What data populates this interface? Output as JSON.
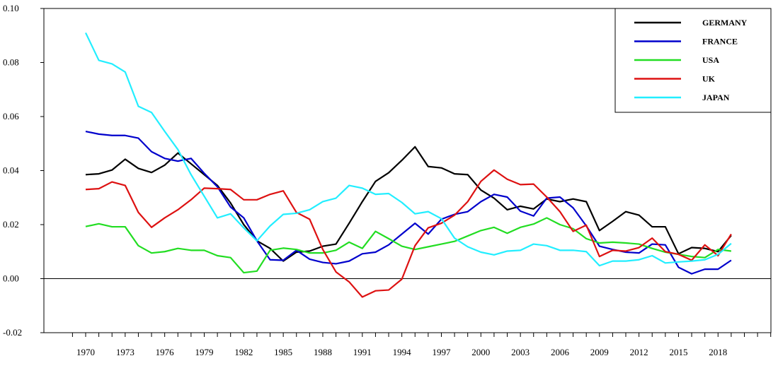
{
  "chart_data": {
    "type": "line",
    "title": "",
    "xlabel": "",
    "ylabel": "",
    "xlim": [
      1968,
      2023
    ],
    "ylim": [
      -0.02,
      0.1
    ],
    "grid": false,
    "zero_line": true,
    "legend_position": "top-right",
    "y_ticks": [
      "-0.02",
      "0.00",
      "0.02",
      "0.04",
      "0.06",
      "0.08",
      "0.10"
    ],
    "y_tick_values": [
      -0.02,
      0.0,
      0.02,
      0.04,
      0.06,
      0.08,
      0.1
    ],
    "x_ticks": [
      "1970",
      "1973",
      "1976",
      "1979",
      "1982",
      "1985",
      "1988",
      "1991",
      "1994",
      "1997",
      "2000",
      "2003",
      "2006",
      "2009",
      "2012",
      "2015",
      "2018"
    ],
    "x_tick_values": [
      1970,
      1973,
      1976,
      1979,
      1982,
      1985,
      1988,
      1991,
      1994,
      1997,
      2000,
      2003,
      2006,
      2009,
      2012,
      2015,
      2018
    ],
    "x": [
      1970,
      1971,
      1972,
      1973,
      1974,
      1975,
      1976,
      1977,
      1978,
      1979,
      1980,
      1981,
      1982,
      1983,
      1984,
      1985,
      1986,
      1987,
      1988,
      1989,
      1990,
      1991,
      1992,
      1993,
      1994,
      1995,
      1996,
      1997,
      1998,
      1999,
      2000,
      2001,
      2002,
      2003,
      2004,
      2005,
      2006,
      2007,
      2008,
      2009,
      2010,
      2011,
      2012,
      2013,
      2014,
      2015,
      2016,
      2017,
      2018,
      2019
    ],
    "series": [
      {
        "name": "GERMANY",
        "color": "#000000",
        "values": [
          0.0385,
          0.0388,
          0.0402,
          0.0442,
          0.0408,
          0.0393,
          0.042,
          0.0465,
          0.0425,
          0.0385,
          0.0345,
          0.028,
          0.02,
          0.014,
          0.0112,
          0.0065,
          0.0098,
          0.0102,
          0.012,
          0.0128,
          0.0205,
          0.0285,
          0.036,
          0.0392,
          0.0438,
          0.0488,
          0.0415,
          0.041,
          0.0388,
          0.0385,
          0.0328,
          0.0298,
          0.0255,
          0.0268,
          0.0258,
          0.0295,
          0.0285,
          0.0295,
          0.0285,
          0.0178,
          0.0212,
          0.0248,
          0.0235,
          0.0192,
          0.0192,
          0.0092,
          0.0115,
          0.0112,
          0.01,
          0.016
        ]
      },
      {
        "name": "FRANCE",
        "color": "#0000cc",
        "values": [
          0.0545,
          0.0535,
          0.053,
          0.053,
          0.052,
          0.047,
          0.0445,
          0.0435,
          0.0445,
          0.039,
          0.034,
          0.0265,
          0.0225,
          0.014,
          0.007,
          0.0068,
          0.0105,
          0.0072,
          0.006,
          0.0055,
          0.0065,
          0.0092,
          0.0098,
          0.0125,
          0.0165,
          0.0205,
          0.0165,
          0.022,
          0.0238,
          0.0248,
          0.0285,
          0.0312,
          0.0302,
          0.025,
          0.0232,
          0.0298,
          0.0302,
          0.0262,
          0.0195,
          0.012,
          0.0108,
          0.0098,
          0.0095,
          0.0128,
          0.0125,
          0.0042,
          0.0018,
          0.0035,
          0.0035,
          0.0068
        ]
      },
      {
        "name": "USA",
        "color": "#22dd22",
        "values": [
          0.0193,
          0.0203,
          0.0192,
          0.0192,
          0.0122,
          0.0095,
          0.01,
          0.0112,
          0.0105,
          0.0105,
          0.0085,
          0.0078,
          0.0022,
          0.0028,
          0.0105,
          0.0113,
          0.0108,
          0.0095,
          0.0095,
          0.0105,
          0.0135,
          0.0112,
          0.0175,
          0.0148,
          0.012,
          0.0108,
          0.0118,
          0.0128,
          0.0138,
          0.0158,
          0.0178,
          0.019,
          0.0168,
          0.019,
          0.0202,
          0.0225,
          0.02,
          0.0185,
          0.0148,
          0.0132,
          0.0135,
          0.0132,
          0.0128,
          0.0112,
          0.0098,
          0.009,
          0.0082,
          0.0078,
          0.0108,
          0.0102
        ]
      },
      {
        "name": "UK",
        "color": "#dd1111",
        "values": [
          0.033,
          0.0333,
          0.0358,
          0.0345,
          0.0245,
          0.019,
          0.0225,
          0.0255,
          0.0292,
          0.0335,
          0.0333,
          0.033,
          0.0292,
          0.0292,
          0.0312,
          0.0325,
          0.0245,
          0.022,
          0.0108,
          0.0025,
          -0.0012,
          -0.0068,
          -0.0045,
          -0.0042,
          -0.0002,
          0.0122,
          0.0188,
          0.0205,
          0.0235,
          0.0285,
          0.036,
          0.0402,
          0.0368,
          0.0348,
          0.035,
          0.0302,
          0.0248,
          0.0175,
          0.0198,
          0.0082,
          0.0105,
          0.0102,
          0.0115,
          0.015,
          0.01,
          0.009,
          0.0068,
          0.0125,
          0.0085,
          0.0165
        ]
      },
      {
        "name": "JAPAN",
        "color": "#22eeff",
        "values": [
          0.091,
          0.0808,
          0.0795,
          0.0765,
          0.0638,
          0.0615,
          0.0545,
          0.0478,
          0.0385,
          0.0305,
          0.0225,
          0.024,
          0.0188,
          0.014,
          0.0195,
          0.0238,
          0.0242,
          0.0255,
          0.0285,
          0.0298,
          0.0345,
          0.0335,
          0.0312,
          0.0315,
          0.0282,
          0.024,
          0.0248,
          0.0222,
          0.015,
          0.0118,
          0.0098,
          0.0088,
          0.0102,
          0.0105,
          0.0128,
          0.0122,
          0.0105,
          0.0105,
          0.01,
          0.0048,
          0.0065,
          0.0065,
          0.007,
          0.0085,
          0.0058,
          0.0062,
          0.0065,
          0.007,
          0.009,
          0.013
        ]
      }
    ]
  }
}
